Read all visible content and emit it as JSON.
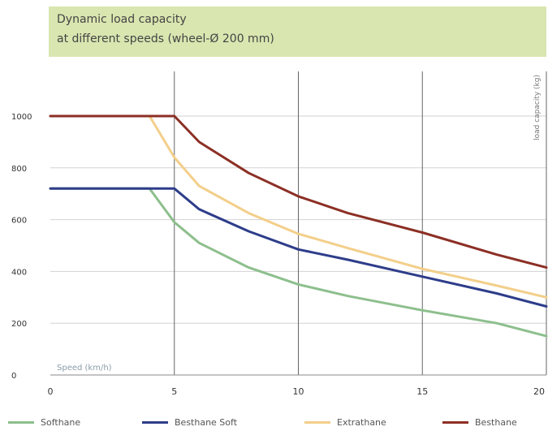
{
  "chart_data": {
    "type": "line",
    "title_lines": [
      "Dynamic load capacity",
      "at different speeds (wheel-Ø 200 mm)"
    ],
    "xlabel": "Speed (km/h)",
    "ylabel": "load capacity (kg)",
    "xlim": [
      0,
      20
    ],
    "ylim": [
      0,
      1000
    ],
    "x_ticks": [
      "0",
      "5",
      "10",
      "15",
      "20"
    ],
    "y_ticks": [
      "0",
      "200",
      "400",
      "600",
      "800",
      "1000"
    ],
    "grid": true,
    "legend_position": "bottom",
    "series": [
      {
        "name": "Softhane",
        "color": "#8dbf8d",
        "x": [
          0,
          4,
          5,
          6,
          8,
          10,
          12,
          15,
          18,
          20
        ],
        "y": [
          720,
          720,
          590,
          510,
          415,
          350,
          305,
          250,
          200,
          150
        ]
      },
      {
        "name": "Besthane Soft",
        "color": "#2e3d8a",
        "x": [
          0,
          5,
          6,
          8,
          10,
          12,
          15,
          18,
          20
        ],
        "y": [
          720,
          720,
          640,
          555,
          485,
          445,
          380,
          315,
          265
        ]
      },
      {
        "name": "Extrathane",
        "color": "#f3cf8a",
        "x": [
          0,
          4,
          5,
          6,
          8,
          10,
          12,
          15,
          18,
          20
        ],
        "y": [
          1000,
          1000,
          840,
          730,
          625,
          545,
          490,
          410,
          345,
          300
        ]
      },
      {
        "name": "Besthane",
        "color": "#8c2f25",
        "x": [
          0,
          5,
          6,
          8,
          10,
          12,
          15,
          18,
          20
        ],
        "y": [
          1000,
          1000,
          900,
          780,
          690,
          625,
          550,
          465,
          415
        ]
      }
    ]
  }
}
